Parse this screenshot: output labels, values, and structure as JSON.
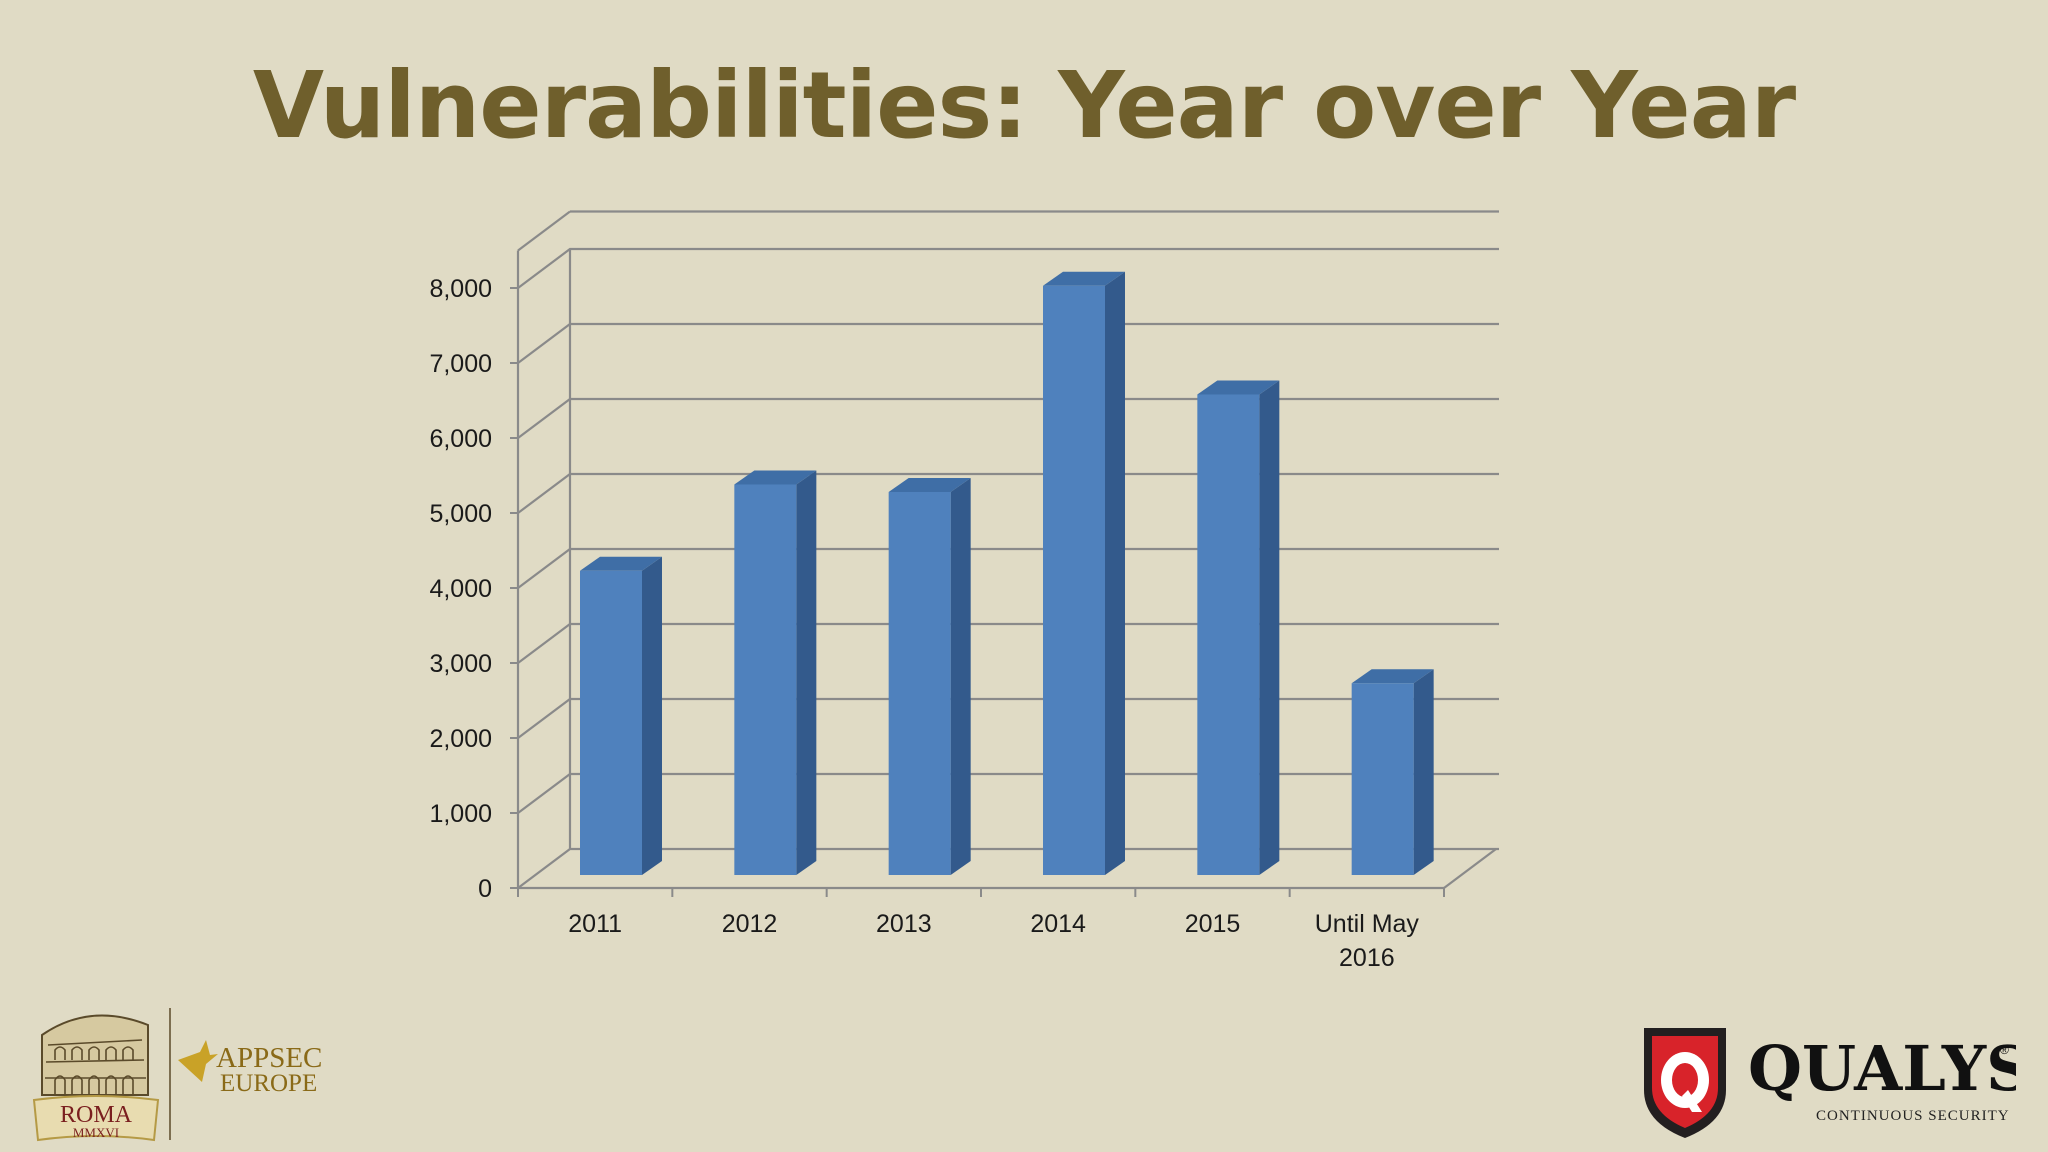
{
  "slide": {
    "title": "Vulnerabilities: Year over Year"
  },
  "chart_data": {
    "type": "bar",
    "style": "3d-column",
    "categories": [
      "2011",
      "2012",
      "2013",
      "2014",
      "2015",
      "Until May 2016"
    ],
    "values": [
      4150,
      5300,
      5200,
      7950,
      6500,
      2650
    ],
    "ylim": [
      0,
      8000
    ],
    "yticks": [
      0,
      1000,
      2000,
      3000,
      4000,
      5000,
      6000,
      7000,
      8000
    ],
    "ytick_labels": [
      "0",
      "1,000",
      "2,000",
      "3,000",
      "4,000",
      "5,000",
      "6,000",
      "7,000",
      "8,000"
    ],
    "title": "",
    "xlabel": "",
    "ylabel": "",
    "grid": true,
    "legend": "none",
    "bar_color": "#4f81bd"
  },
  "logos": {
    "left": {
      "city": "ROMA",
      "year": "MMXVI",
      "event_line1": "APPSEC",
      "event_line2": "EUROPE"
    },
    "right": {
      "brand": "QUALYS",
      "tagline": "CONTINUOUS SECURITY",
      "emblem_letter": "Q",
      "emblem-icon": "qualys-shield-icon"
    }
  },
  "colors": {
    "background": "#e0dbc5",
    "title": "#6f5f2c",
    "bar_front": "#4f81bd",
    "bar_side": "#335a8c",
    "bar_top": "#3f6ea6"
  }
}
